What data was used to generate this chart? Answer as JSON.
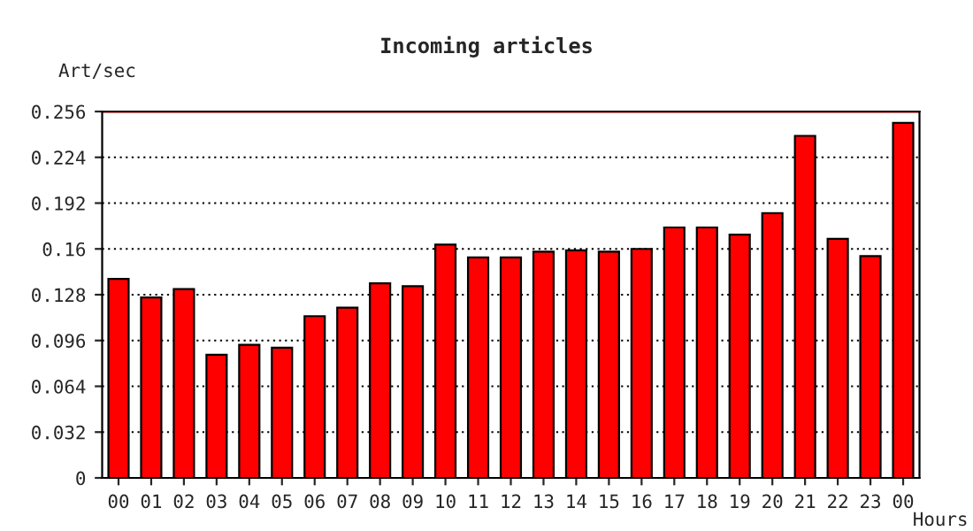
{
  "chart_data": {
    "type": "bar",
    "title": "Incoming articles",
    "ylabel": "Art/sec",
    "xlabel": "Hours",
    "categories": [
      "00",
      "01",
      "02",
      "03",
      "04",
      "05",
      "06",
      "07",
      "08",
      "09",
      "10",
      "11",
      "12",
      "13",
      "14",
      "15",
      "16",
      "17",
      "18",
      "19",
      "20",
      "21",
      "22",
      "23",
      "00"
    ],
    "series": [
      {
        "color": "#ff0000",
        "values": [
          0.139,
          0.126,
          0.132,
          0.086,
          0.093,
          0.091,
          0.113,
          0.119,
          0.136,
          0.134,
          0.163,
          0.154,
          0.154,
          0.158,
          0.159,
          0.158,
          0.16,
          0.175,
          0.175,
          0.17,
          0.185,
          0.239,
          0.167,
          0.155,
          0.248
        ]
      }
    ],
    "ylim": [
      0,
      0.256
    ],
    "yticks": [
      0,
      0.032,
      0.064,
      0.096,
      0.128,
      0.16,
      0.192,
      0.224,
      0.256
    ],
    "grid": "y",
    "ref_lines": [
      {
        "axis": "y",
        "value": 0.256,
        "color": "#ff0000",
        "line_style": "solid"
      }
    ]
  }
}
